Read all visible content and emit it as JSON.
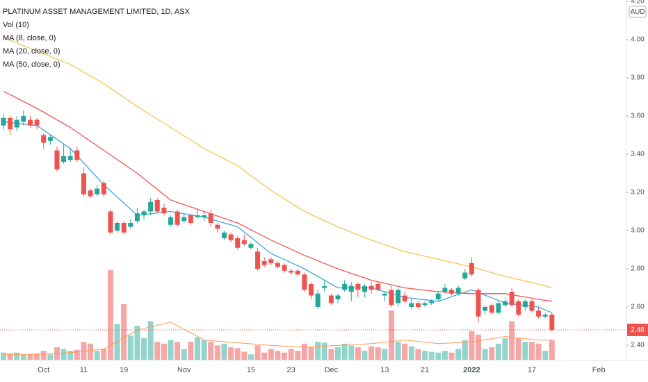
{
  "chart_data": {
    "type": "candlestick",
    "title": "PLATINUM ASSET MANAGEMENT LIMITED, 1D, ASX",
    "currency": "AUD",
    "up_color": "#26a69a",
    "down_color": "#ef5350",
    "volume_up_color": "#93d4cc",
    "volume_down_color": "#f5a6a5",
    "grid": false,
    "ylim": [
      2.32,
      4.2
    ],
    "yticks": [
      {
        "value": 2.4,
        "label": "2.40"
      },
      {
        "value": 2.6,
        "label": "2.60"
      },
      {
        "value": 2.8,
        "label": "2.80"
      },
      {
        "value": 3.0,
        "label": "3.00"
      },
      {
        "value": 3.2,
        "label": "3.20"
      },
      {
        "value": 3.4,
        "label": "3.40"
      },
      {
        "value": 3.6,
        "label": "3.60"
      },
      {
        "value": 3.8,
        "label": "3.80"
      },
      {
        "value": 4.0,
        "label": "4.00"
      },
      {
        "value": 4.2,
        "label": "4.20"
      }
    ],
    "categories": [
      null,
      null,
      null,
      null,
      null,
      null,
      "Oct",
      null,
      null,
      null,
      null,
      null,
      "11",
      null,
      null,
      null,
      null,
      null,
      "19",
      null,
      null,
      null,
      null,
      null,
      null,
      null,
      null,
      "Nov",
      null,
      null,
      null,
      null,
      null,
      null,
      null,
      null,
      null,
      "15",
      null,
      null,
      null,
      null,
      null,
      "23",
      null,
      null,
      null,
      null,
      null,
      "Dec",
      null,
      null,
      null,
      null,
      null,
      null,
      null,
      "13",
      null,
      null,
      null,
      null,
      null,
      "21",
      null,
      null,
      null,
      null,
      null,
      null,
      "2022",
      null,
      null,
      null,
      null,
      null,
      null,
      null,
      null,
      "17",
      null,
      null,
      null,
      null,
      null,
      null,
      null,
      null,
      null,
      "Feb"
    ],
    "open": [
      3.55,
      3.59,
      3.54,
      3.57,
      3.58,
      3.58,
      3.5,
      3.47,
      3.42,
      3.36,
      3.37,
      3.42,
      3.3,
      3.21,
      3.19,
      3.25,
      3.1,
      3.0,
      3.04,
      3.02,
      3.05,
      3.08,
      3.1,
      3.16,
      3.12,
      3.03,
      3.1,
      3.05,
      3.08,
      3.07,
      3.07,
      3.09,
      3.03,
      2.96,
      2.98,
      2.96,
      2.95,
      2.91,
      2.89,
      2.84,
      2.85,
      2.83,
      2.82,
      2.79,
      2.79,
      2.77,
      2.72,
      2.6,
      2.7,
      2.66,
      2.64,
      2.69,
      2.68,
      2.72,
      2.68,
      2.71,
      2.72,
      2.66,
      2.69,
      2.62,
      2.66,
      2.6,
      2.62,
      2.61,
      2.62,
      2.64,
      2.68,
      2.69,
      2.67,
      2.75,
      2.83,
      2.69,
      2.58,
      2.61,
      2.57,
      2.61,
      2.68,
      2.63,
      2.6,
      2.63,
      2.58,
      2.55,
      2.56,
      null,
      null,
      null,
      null,
      null,
      null,
      null
    ],
    "high": [
      3.61,
      3.6,
      3.6,
      3.63,
      3.6,
      3.59,
      3.51,
      3.5,
      3.44,
      3.45,
      3.43,
      3.44,
      3.33,
      3.22,
      3.24,
      3.26,
      3.11,
      3.05,
      3.05,
      3.06,
      3.12,
      3.11,
      3.17,
      3.17,
      3.14,
      3.08,
      3.11,
      3.09,
      3.09,
      3.11,
      3.1,
      3.11,
      3.04,
      3.0,
      2.99,
      2.97,
      2.98,
      2.94,
      2.91,
      2.86,
      2.86,
      2.84,
      2.83,
      2.8,
      2.8,
      2.78,
      2.73,
      2.69,
      2.74,
      2.67,
      2.67,
      2.74,
      2.73,
      2.73,
      2.72,
      2.73,
      2.73,
      2.68,
      2.71,
      2.7,
      2.68,
      2.64,
      2.63,
      2.63,
      2.64,
      2.68,
      2.72,
      2.7,
      2.71,
      2.8,
      2.86,
      2.7,
      2.61,
      2.62,
      2.63,
      2.65,
      2.7,
      2.64,
      2.64,
      2.64,
      2.6,
      2.57,
      2.57,
      null,
      null,
      null,
      null,
      null,
      null,
      null
    ],
    "low": [
      3.53,
      3.5,
      3.52,
      3.55,
      3.54,
      3.53,
      3.43,
      3.45,
      3.31,
      3.35,
      3.36,
      3.36,
      3.18,
      3.17,
      3.18,
      3.18,
      2.98,
      2.99,
      2.98,
      3.01,
      3.04,
      3.06,
      3.08,
      3.09,
      3.08,
      3.02,
      3.02,
      3.04,
      3.03,
      3.06,
      3.05,
      3.02,
      2.99,
      2.95,
      2.94,
      2.9,
      2.92,
      2.9,
      2.79,
      2.81,
      2.82,
      2.8,
      2.78,
      2.77,
      2.76,
      2.68,
      2.64,
      2.59,
      2.68,
      2.61,
      2.62,
      2.68,
      2.63,
      2.65,
      2.65,
      2.67,
      2.68,
      2.63,
      2.6,
      2.6,
      2.62,
      2.59,
      2.59,
      2.6,
      2.61,
      2.63,
      2.67,
      2.66,
      2.66,
      2.74,
      2.76,
      2.52,
      2.56,
      2.56,
      2.56,
      2.6,
      2.6,
      2.55,
      2.58,
      2.57,
      2.54,
      2.54,
      2.47,
      null,
      null,
      null,
      null,
      null,
      null,
      null
    ],
    "close": [
      3.59,
      3.53,
      3.58,
      3.6,
      3.55,
      3.55,
      3.46,
      3.49,
      3.32,
      3.39,
      3.39,
      3.37,
      3.19,
      3.18,
      3.22,
      3.19,
      2.99,
      3.04,
      2.99,
      3.04,
      3.09,
      3.1,
      3.15,
      3.1,
      3.09,
      3.07,
      3.03,
      3.07,
      3.04,
      3.08,
      3.08,
      3.04,
      3.01,
      2.99,
      2.95,
      2.91,
      2.93,
      2.93,
      2.8,
      2.82,
      2.83,
      2.81,
      2.79,
      2.78,
      2.77,
      2.69,
      2.66,
      2.67,
      2.71,
      2.62,
      2.66,
      2.72,
      2.71,
      2.69,
      2.71,
      2.69,
      2.69,
      2.67,
      2.61,
      2.69,
      2.63,
      2.62,
      2.6,
      2.62,
      2.63,
      2.67,
      2.7,
      2.67,
      2.7,
      2.78,
      2.77,
      2.55,
      2.6,
      2.57,
      2.62,
      2.63,
      2.61,
      2.56,
      2.63,
      2.58,
      2.55,
      2.56,
      2.48,
      null,
      null,
      null,
      null,
      null,
      null,
      null
    ],
    "volume": {
      "name": "Vol (10)",
      "values": [
        8,
        7,
        8,
        6,
        6,
        7,
        10,
        6,
        14,
        12,
        10,
        11,
        20,
        18,
        10,
        12,
        100,
        40,
        62,
        27,
        38,
        24,
        43,
        20,
        18,
        22,
        20,
        12,
        20,
        25,
        22,
        20,
        16,
        18,
        14,
        13,
        9,
        6,
        16,
        8,
        12,
        10,
        8,
        12,
        10,
        18,
        14,
        20,
        19,
        12,
        14,
        18,
        16,
        14,
        10,
        15,
        14,
        12,
        55,
        20,
        18,
        15,
        12,
        10,
        9,
        8,
        10,
        8,
        12,
        22,
        32,
        28,
        12,
        14,
        18,
        24,
        43,
        24,
        20,
        20,
        18,
        10,
        22,
        null,
        null,
        null,
        null,
        null,
        null,
        null
      ],
      "ma_color": "#ff9850",
      "ma_x": [
        0,
        5,
        10,
        15,
        20,
        25,
        30,
        35,
        40,
        45,
        50,
        55,
        60,
        65,
        70,
        75,
        80,
        82
      ],
      "ma_values": [
        6,
        6,
        8,
        12,
        33,
        42,
        22,
        19,
        16,
        14,
        16,
        18,
        22,
        18,
        20,
        26,
        22,
        22
      ]
    },
    "series": [
      {
        "name": "MA (8, close, 0)",
        "color": "#3fa7e0",
        "x": [
          0,
          5,
          10,
          15,
          20,
          25,
          30,
          35,
          40,
          45,
          50,
          55,
          60,
          65,
          70,
          75,
          80,
          82
        ],
        "values": [
          3.57,
          3.55,
          3.43,
          3.24,
          3.08,
          3.1,
          3.07,
          3.02,
          2.88,
          2.8,
          2.7,
          2.7,
          2.65,
          2.63,
          2.69,
          2.62,
          2.6,
          2.57
        ]
      },
      {
        "name": "MA (20, close, 0)",
        "color": "#f0554f",
        "x": [
          0,
          5,
          10,
          15,
          20,
          25,
          30,
          35,
          40,
          45,
          50,
          55,
          60,
          65,
          70,
          75,
          80,
          82
        ],
        "values": [
          3.73,
          3.64,
          3.54,
          3.42,
          3.3,
          3.16,
          3.1,
          3.04,
          2.95,
          2.87,
          2.8,
          2.74,
          2.7,
          2.68,
          2.67,
          2.67,
          2.64,
          2.63
        ]
      },
      {
        "name": "MA (50, close, 0)",
        "color": "#fbc250",
        "x": [
          0,
          5,
          10,
          15,
          20,
          25,
          30,
          35,
          40,
          45,
          50,
          55,
          60,
          65,
          70,
          75,
          80,
          82
        ],
        "values": [
          4.01,
          3.94,
          3.87,
          3.77,
          3.65,
          3.54,
          3.43,
          3.34,
          3.21,
          3.1,
          3.02,
          2.95,
          2.89,
          2.85,
          2.81,
          2.76,
          2.72,
          2.7
        ]
      }
    ]
  }
}
